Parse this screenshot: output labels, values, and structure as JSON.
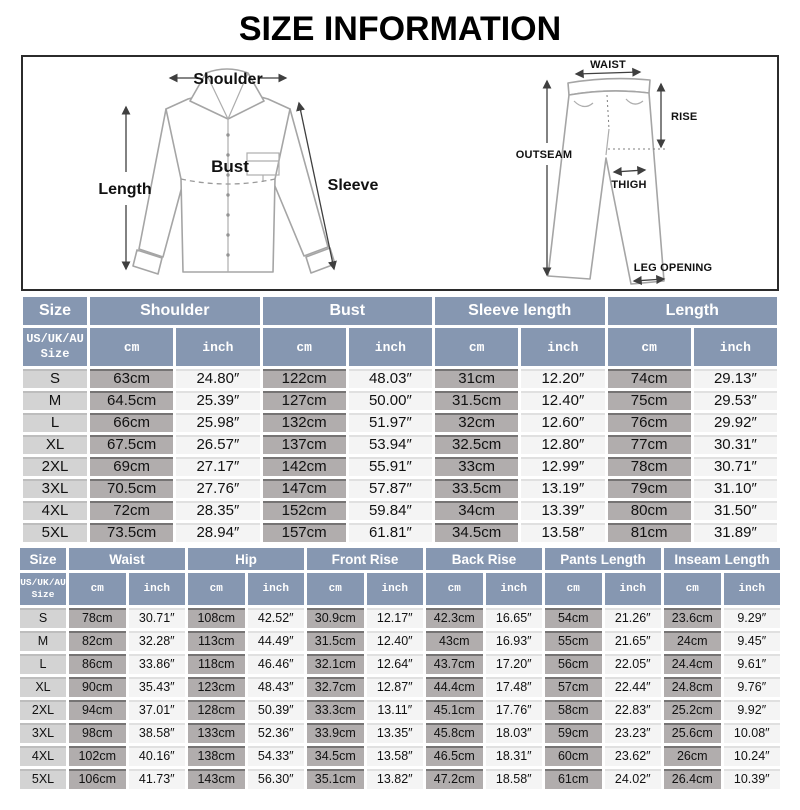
{
  "page": {
    "title": "SIZE INFORMATION"
  },
  "colors": {
    "header_blue": "#8697b1",
    "size_cell_gray": "#d3d3d3",
    "cm_cell_gray": "#b1adad",
    "inch_cell_light": "#f4f4f4"
  },
  "shirt_diagram": {
    "labels": {
      "shoulder": "Shoulder",
      "length": "Length",
      "bust": "Bust",
      "sleeve": "Sleeve"
    }
  },
  "pants_diagram": {
    "labels": {
      "waist": "WAIST",
      "rise": "RISE",
      "outseam": "OUTSEAM",
      "thigh": "THIGH",
      "leg_opening": "LEG OPENING"
    }
  },
  "shirt_table": {
    "size_group_label": "Size",
    "corner_label": "US/UK/AU Size",
    "unit_labels": {
      "cm": "cm",
      "inch": "inch"
    },
    "groups": [
      "Shoulder",
      "Bust",
      "Sleeve length",
      "Length"
    ],
    "rows": [
      {
        "size": "S",
        "values": [
          "63cm",
          "24.80″",
          "122cm",
          "48.03″",
          "31cm",
          "12.20″",
          "74cm",
          "29.13″"
        ]
      },
      {
        "size": "M",
        "values": [
          "64.5cm",
          "25.39″",
          "127cm",
          "50.00″",
          "31.5cm",
          "12.40″",
          "75cm",
          "29.53″"
        ]
      },
      {
        "size": "L",
        "values": [
          "66cm",
          "25.98″",
          "132cm",
          "51.97″",
          "32cm",
          "12.60″",
          "76cm",
          "29.92″"
        ]
      },
      {
        "size": "XL",
        "values": [
          "67.5cm",
          "26.57″",
          "137cm",
          "53.94″",
          "32.5cm",
          "12.80″",
          "77cm",
          "30.31″"
        ]
      },
      {
        "size": "2XL",
        "values": [
          "69cm",
          "27.17″",
          "142cm",
          "55.91″",
          "33cm",
          "12.99″",
          "78cm",
          "30.71″"
        ]
      },
      {
        "size": "3XL",
        "values": [
          "70.5cm",
          "27.76″",
          "147cm",
          "57.87″",
          "33.5cm",
          "13.19″",
          "79cm",
          "31.10″"
        ]
      },
      {
        "size": "4XL",
        "values": [
          "72cm",
          "28.35″",
          "152cm",
          "59.84″",
          "34cm",
          "13.39″",
          "80cm",
          "31.50″"
        ]
      },
      {
        "size": "5XL",
        "values": [
          "73.5cm",
          "28.94″",
          "157cm",
          "61.81″",
          "34.5cm",
          "13.58″",
          "81cm",
          "31.89″"
        ]
      }
    ]
  },
  "pants_table": {
    "size_group_label": "Size",
    "corner_label": "US/UK/AU Size",
    "unit_labels": {
      "cm": "cm",
      "inch": "inch"
    },
    "groups": [
      "Waist",
      "Hip",
      "Front Rise",
      "Back Rise",
      "Pants Length",
      "Inseam Length"
    ],
    "rows": [
      {
        "size": "S",
        "values": [
          "78cm",
          "30.71″",
          "108cm",
          "42.52″",
          "30.9cm",
          "12.17″",
          "42.3cm",
          "16.65″",
          "54cm",
          "21.26″",
          "23.6cm",
          "9.29″"
        ]
      },
      {
        "size": "M",
        "values": [
          "82cm",
          "32.28″",
          "113cm",
          "44.49″",
          "31.5cm",
          "12.40″",
          "43cm",
          "16.93″",
          "55cm",
          "21.65″",
          "24cm",
          "9.45″"
        ]
      },
      {
        "size": "L",
        "values": [
          "86cm",
          "33.86″",
          "118cm",
          "46.46″",
          "32.1cm",
          "12.64″",
          "43.7cm",
          "17.20″",
          "56cm",
          "22.05″",
          "24.4cm",
          "9.61″"
        ]
      },
      {
        "size": "XL",
        "values": [
          "90cm",
          "35.43″",
          "123cm",
          "48.43″",
          "32.7cm",
          "12.87″",
          "44.4cm",
          "17.48″",
          "57cm",
          "22.44″",
          "24.8cm",
          "9.76″"
        ]
      },
      {
        "size": "2XL",
        "values": [
          "94cm",
          "37.01″",
          "128cm",
          "50.39″",
          "33.3cm",
          "13.11″",
          "45.1cm",
          "17.76″",
          "58cm",
          "22.83″",
          "25.2cm",
          "9.92″"
        ]
      },
      {
        "size": "3XL",
        "values": [
          "98cm",
          "38.58″",
          "133cm",
          "52.36″",
          "33.9cm",
          "13.35″",
          "45.8cm",
          "18.03″",
          "59cm",
          "23.23″",
          "25.6cm",
          "10.08″"
        ]
      },
      {
        "size": "4XL",
        "values": [
          "102cm",
          "40.16″",
          "138cm",
          "54.33″",
          "34.5cm",
          "13.58″",
          "46.5cm",
          "18.31″",
          "60cm",
          "23.62″",
          "26cm",
          "10.24″"
        ]
      },
      {
        "size": "5XL",
        "values": [
          "106cm",
          "41.73″",
          "143cm",
          "56.30″",
          "35.1cm",
          "13.82″",
          "47.2cm",
          "18.58″",
          "61cm",
          "24.02″",
          "26.4cm",
          "10.39″"
        ]
      }
    ]
  }
}
